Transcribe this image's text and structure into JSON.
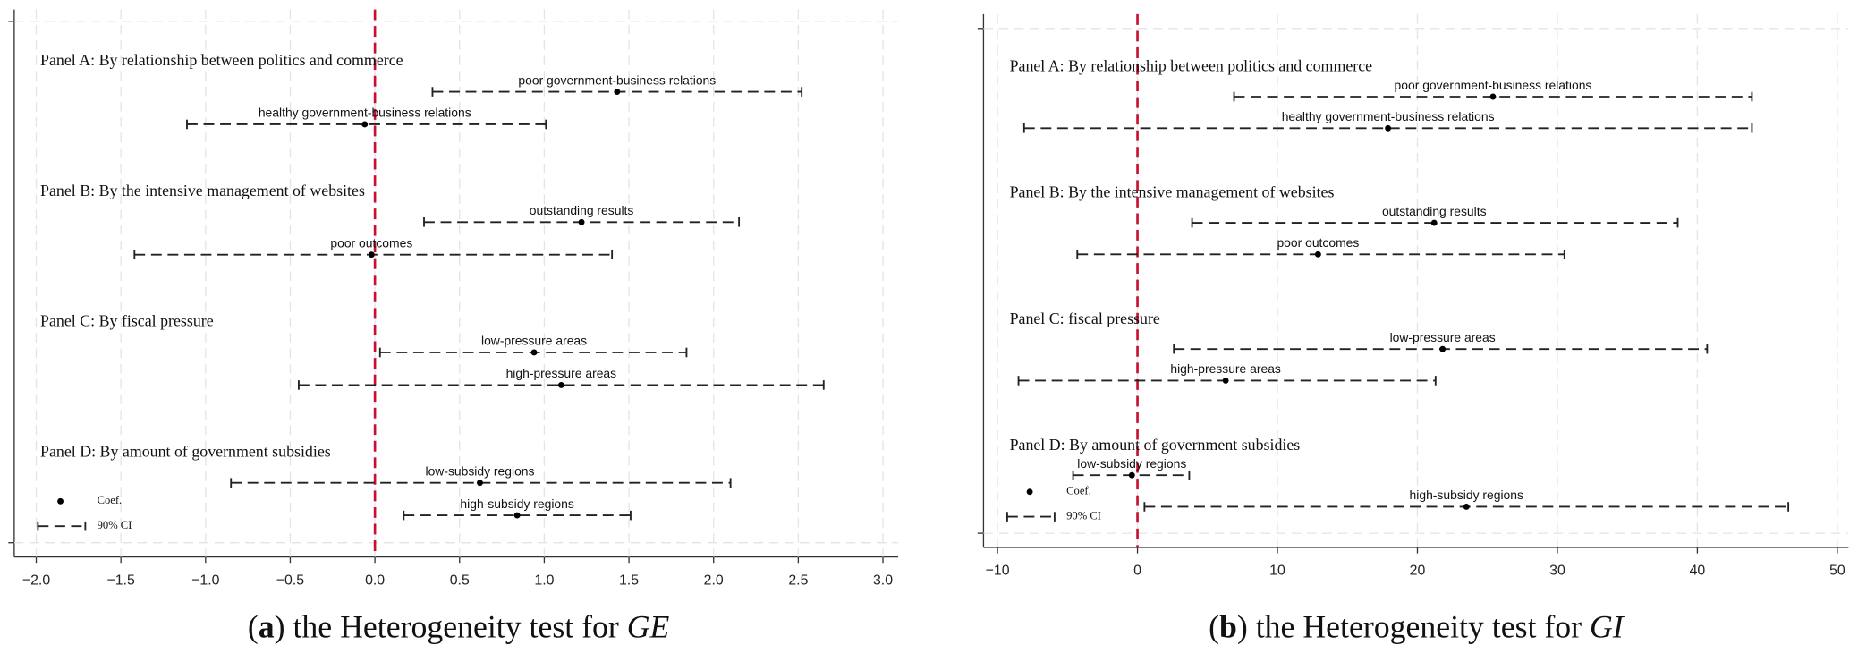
{
  "chart_data": [
    {
      "type": "coefplot",
      "caption": [
        "(",
        "a",
        ") the Heterogeneity test for ",
        "GE"
      ],
      "xlim": [
        -2.13,
        3.09
      ],
      "xticks": [
        {
          "value": -2,
          "label": "−2.0"
        },
        {
          "value": -1.5,
          "label": "−1.5"
        },
        {
          "value": -1,
          "label": "−1.0"
        },
        {
          "value": -0.5,
          "label": "−0.5"
        },
        {
          "value": 0,
          "label": "0.0"
        },
        0.5,
        {
          "value": 1,
          "label": "1.0"
        },
        1.5,
        {
          "value": 2,
          "label": "2.0"
        },
        2.5,
        {
          "value": 3,
          "label": "3.0"
        }
      ],
      "grid": true,
      "xline": 0,
      "xline_color": "#c8102e",
      "color": "#222222",
      "legend": {
        "position": "lower left",
        "entries": [
          "Coef.",
          "90% CI"
        ]
      },
      "panels": [
        {
          "title": "Panel A: By relationship between politics and commerce",
          "items": [
            {
              "label": "poor government-business relations",
              "coef": 1.43,
              "lower": 0.34,
              "upper": 2.52
            },
            {
              "label": "healthy government-business relations",
              "coef": -0.06,
              "lower": -1.11,
              "upper": 1.01
            }
          ]
        },
        {
          "title": "Panel B: By the intensive management of websites",
          "items": [
            {
              "label": "outstanding results",
              "coef": 1.22,
              "lower": 0.29,
              "upper": 2.15
            },
            {
              "label": "poor outcomes",
              "coef": -0.02,
              "lower": -1.42,
              "upper": 1.4
            }
          ]
        },
        {
          "title": "Panel C: By fiscal pressure",
          "items": [
            {
              "label": "low-pressure areas",
              "coef": 0.94,
              "lower": 0.03,
              "upper": 1.84
            },
            {
              "label": "high-pressure areas",
              "coef": 1.1,
              "lower": -0.45,
              "upper": 2.65
            }
          ]
        },
        {
          "title": "Panel D: By amount of government subsidies",
          "items": [
            {
              "label": "low-subsidy regions",
              "coef": 0.62,
              "lower": -0.85,
              "upper": 2.1
            },
            {
              "label": "high-subsidy regions",
              "coef": 0.84,
              "lower": 0.17,
              "upper": 1.51
            }
          ]
        }
      ]
    },
    {
      "type": "coefplot",
      "caption": [
        "(",
        "b",
        ") the Heterogeneity test for ",
        "GI"
      ],
      "xlim": [
        -11,
        50.8
      ],
      "xticks": [
        {
          "value": -10,
          "label": "−10"
        },
        0,
        10,
        20,
        30,
        40,
        50
      ],
      "grid": true,
      "xline": 0,
      "xline_color": "#c8102e",
      "color": "#222222",
      "legend": {
        "position": "lower left",
        "entries": [
          "Coef.",
          "90% CI"
        ]
      },
      "panels": [
        {
          "title": "Panel A: By relationship between politics and commerce",
          "items": [
            {
              "label": "poor government-business relations",
              "coef": 25.4,
              "lower": 6.9,
              "upper": 43.9
            },
            {
              "label": "healthy government-business relations",
              "coef": 17.9,
              "lower": -8.1,
              "upper": 43.9
            }
          ]
        },
        {
          "title": "Panel B: By the intensive management of websites",
          "items": [
            {
              "label": "outstanding results",
              "coef": 21.2,
              "lower": 3.9,
              "upper": 38.6
            },
            {
              "label": "poor outcomes",
              "coef": 12.9,
              "lower": -4.3,
              "upper": 30.5
            }
          ]
        },
        {
          "title": "Panel C: fiscal pressure",
          "items": [
            {
              "label": "low-pressure areas",
              "coef": 21.8,
              "lower": 2.6,
              "upper": 40.7
            },
            {
              "label": "high-pressure areas",
              "coef": 6.3,
              "lower": -8.5,
              "upper": 21.3
            }
          ]
        },
        {
          "title": "Panel D: By amount of government subsidies",
          "items": [
            {
              "label": "low-subsidy regions",
              "coef": -0.4,
              "lower": -4.6,
              "upper": 3.7
            },
            {
              "label": "high-subsidy regions",
              "coef": 23.5,
              "lower": 0.5,
              "upper": 46.5
            }
          ]
        }
      ]
    }
  ]
}
